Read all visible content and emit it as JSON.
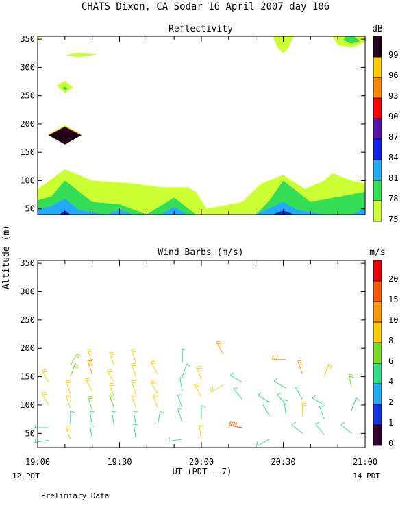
{
  "title": "CHATS Dixon, CA  Sodar  16 April 2007  day 106",
  "shared": {
    "ylabel": "Altitude (m)",
    "xlabel": "UT  (PDT - 7)",
    "x_ticks": [
      "19:00",
      "19:30",
      "20:00",
      "20:30",
      "21:00"
    ],
    "left_note": "12 PDT",
    "right_note": "14 PDT",
    "footer": "Prelimiary Data"
  },
  "chart_data": [
    {
      "type": "heatmap",
      "title": "Reflectivity",
      "ylim": [
        40,
        355
      ],
      "y_ticks": [
        50,
        100,
        150,
        200,
        250,
        300,
        350
      ],
      "xlim": [
        "19:00",
        "21:00"
      ],
      "colorbar": {
        "unit": "dB",
        "levels": [
          75,
          78,
          81,
          84,
          87,
          90,
          93,
          96,
          99
        ],
        "colors": [
          "#ccff33",
          "#33dd55",
          "#22aaff",
          "#1122ee",
          "#5511aa",
          "#ff0000",
          "#ff8800",
          "#ffcc00",
          "#22001a"
        ]
      },
      "layers": [
        {
          "level": 75,
          "points": [
            [
              "19:00",
              40
            ],
            [
              "19:00",
              85
            ],
            [
              "19:10",
              120
            ],
            [
              "19:20",
              100
            ],
            [
              "19:35",
              95
            ],
            [
              "19:45",
              88
            ],
            [
              "19:55",
              88
            ],
            [
              "19:58",
              80
            ],
            [
              "20:02",
              50
            ],
            [
              "20:15",
              62
            ],
            [
              "20:22",
              95
            ],
            [
              "20:30",
              110
            ],
            [
              "20:38",
              85
            ],
            [
              "20:45",
              100
            ],
            [
              "20:48",
              113
            ],
            [
              "20:55",
              100
            ],
            [
              "21:00",
              95
            ],
            [
              "21:00",
              40
            ]
          ]
        },
        {
          "level": 78,
          "points": [
            [
              "19:00",
              40
            ],
            [
              "19:00",
              65
            ],
            [
              "19:05",
              72
            ],
            [
              "19:10",
              100
            ],
            [
              "19:20",
              62
            ],
            [
              "19:30",
              58
            ],
            [
              "19:40",
              40
            ],
            [
              "19:50",
              70
            ],
            [
              "19:58",
              40
            ],
            [
              "20:20",
              40
            ],
            [
              "20:25",
              65
            ],
            [
              "20:30",
              100
            ],
            [
              "20:40",
              62
            ],
            [
              "21:00",
              80
            ],
            [
              "21:00",
              40
            ]
          ]
        },
        {
          "level": 81,
          "points": [
            [
              "19:00",
              40
            ],
            [
              "19:00",
              48
            ],
            [
              "19:05",
              55
            ],
            [
              "19:10",
              68
            ],
            [
              "19:15",
              48
            ],
            [
              "19:25",
              40
            ],
            [
              "19:30",
              48
            ],
            [
              "19:35",
              40
            ],
            [
              "19:45",
              40
            ],
            [
              "19:50",
              53
            ],
            [
              "19:55",
              40
            ],
            [
              "20:20",
              40
            ],
            [
              "20:30",
              62
            ],
            [
              "20:35",
              48
            ],
            [
              "20:45",
              40
            ],
            [
              "20:55",
              40
            ],
            [
              "21:00",
              50
            ],
            [
              "21:00",
              40
            ]
          ]
        },
        {
          "level": 84,
          "points": [
            [
              "19:08",
              40
            ],
            [
              "19:10",
              47
            ],
            [
              "19:12",
              40
            ]
          ]
        },
        {
          "level": 84,
          "points": [
            [
              "20:26",
              40
            ],
            [
              "20:30",
              47
            ],
            [
              "20:34",
              40
            ]
          ]
        },
        {
          "level": 75,
          "points": [
            [
              "19:04",
              182
            ],
            [
              "19:10",
              198
            ],
            [
              "19:16",
              182
            ],
            [
              "19:10",
              165
            ]
          ]
        },
        {
          "level": 93,
          "points": [
            [
              "19:04",
              181
            ],
            [
              "19:10",
              196
            ],
            [
              "19:16",
              181
            ],
            [
              "19:10",
              164
            ]
          ]
        },
        {
          "level": 99,
          "points": [
            [
              "19:04",
              180
            ],
            [
              "19:10",
              195
            ],
            [
              "19:16",
              180
            ],
            [
              "19:10",
              164
            ]
          ]
        },
        {
          "level": 75,
          "points": [
            [
              "19:07",
              268
            ],
            [
              "19:10",
              276
            ],
            [
              "19:13",
              264
            ],
            [
              "19:10",
              255
            ]
          ]
        },
        {
          "level": 78,
          "points": [
            [
              "19:09",
              264
            ],
            [
              "19:10",
              266
            ],
            [
              "19:11",
              262
            ],
            [
              "19:10",
              260
            ]
          ]
        },
        {
          "level": 75,
          "points": [
            [
              "19:10",
              322
            ],
            [
              "19:15",
              326
            ],
            [
              "19:22",
              323
            ],
            [
              "19:15",
              318
            ]
          ]
        },
        {
          "level": 75,
          "points": [
            [
              "19:00",
              342
            ],
            [
              "19:01",
              355
            ],
            [
              "19:00",
              355
            ]
          ]
        },
        {
          "level": 75,
          "points": [
            [
              "20:26",
              355
            ],
            [
              "20:28",
              335
            ],
            [
              "20:30",
              325
            ],
            [
              "20:32",
              335
            ],
            [
              "20:34",
              355
            ]
          ]
        },
        {
          "level": 75,
          "points": [
            [
              "20:48",
              355
            ],
            [
              "20:50",
              340
            ],
            [
              "20:55",
              335
            ],
            [
              "21:00",
              345
            ],
            [
              "21:00",
              355
            ]
          ]
        },
        {
          "level": 78,
          "points": [
            [
              "20:52",
              348
            ],
            [
              "20:55",
              342
            ],
            [
              "20:58",
              346
            ],
            [
              "20:56",
              355
            ],
            [
              "20:53",
              355
            ]
          ]
        }
      ]
    },
    {
      "type": "scatter",
      "title": "Wind Barbs (m/s)",
      "ylim": [
        25,
        355
      ],
      "y_ticks": [
        50,
        100,
        150,
        200,
        250,
        300,
        350
      ],
      "xlim": [
        "19:00",
        "21:00"
      ],
      "colorbar": {
        "unit": "m/s",
        "levels": [
          0,
          1,
          2,
          4,
          6,
          8,
          10,
          15,
          20
        ],
        "colors": [
          "#330033",
          "#1133dd",
          "#22aaff",
          "#33dd88",
          "#77dd22",
          "#ffcc00",
          "#ff9900",
          "#ff5500",
          "#ee0000"
        ]
      },
      "barbs": [
        {
          "t": "19:04",
          "alt": 140,
          "spd": 8,
          "dir": 330
        },
        {
          "t": "19:04",
          "alt": 100,
          "spd": 8,
          "dir": 330
        },
        {
          "t": "19:04",
          "alt": 60,
          "spd": 5,
          "dir": 270
        },
        {
          "t": "19:04",
          "alt": 38,
          "spd": 5,
          "dir": 260
        },
        {
          "t": "19:12",
          "alt": 170,
          "spd": 7,
          "dir": 30
        },
        {
          "t": "19:12",
          "alt": 150,
          "spd": 7,
          "dir": 20
        },
        {
          "t": "19:12",
          "alt": 120,
          "spd": 8,
          "dir": 340
        },
        {
          "t": "19:12",
          "alt": 95,
          "spd": 8,
          "dir": 340
        },
        {
          "t": "19:12",
          "alt": 65,
          "spd": 4,
          "dir": 0
        },
        {
          "t": "19:12",
          "alt": 40,
          "spd": 8,
          "dir": 340
        },
        {
          "t": "19:20",
          "alt": 175,
          "spd": 8,
          "dir": 340
        },
        {
          "t": "19:20",
          "alt": 155,
          "spd": 12,
          "dir": 340
        },
        {
          "t": "19:20",
          "alt": 125,
          "spd": 8,
          "dir": 330
        },
        {
          "t": "19:20",
          "alt": 92,
          "spd": 6,
          "dir": 340
        },
        {
          "t": "19:20",
          "alt": 65,
          "spd": 5,
          "dir": 350
        },
        {
          "t": "19:20",
          "alt": 40,
          "spd": 5,
          "dir": 350
        },
        {
          "t": "19:28",
          "alt": 170,
          "spd": 8,
          "dir": 340
        },
        {
          "t": "19:28",
          "alt": 140,
          "spd": 8,
          "dir": 330
        },
        {
          "t": "19:28",
          "alt": 115,
          "spd": 8,
          "dir": 340
        },
        {
          "t": "19:28",
          "alt": 95,
          "spd": 7,
          "dir": 340
        },
        {
          "t": "19:28",
          "alt": 65,
          "spd": 5,
          "dir": 350
        },
        {
          "t": "19:36",
          "alt": 175,
          "spd": 8,
          "dir": 340
        },
        {
          "t": "19:36",
          "alt": 150,
          "spd": 8,
          "dir": 340
        },
        {
          "t": "19:36",
          "alt": 120,
          "spd": 8,
          "dir": 340
        },
        {
          "t": "19:36",
          "alt": 95,
          "spd": 8,
          "dir": 340
        },
        {
          "t": "19:36",
          "alt": 65,
          "spd": 5,
          "dir": 350
        },
        {
          "t": "19:36",
          "alt": 42,
          "spd": 5,
          "dir": 350
        },
        {
          "t": "19:44",
          "alt": 155,
          "spd": 8,
          "dir": 330
        },
        {
          "t": "19:44",
          "alt": 120,
          "spd": 8,
          "dir": 330
        },
        {
          "t": "19:44",
          "alt": 95,
          "spd": 8,
          "dir": 340
        },
        {
          "t": "19:44",
          "alt": 65,
          "spd": 4,
          "dir": 10
        },
        {
          "t": "19:53",
          "alt": 175,
          "spd": 5,
          "dir": 0
        },
        {
          "t": "19:53",
          "alt": 150,
          "spd": 5,
          "dir": 20
        },
        {
          "t": "19:53",
          "alt": 125,
          "spd": 5,
          "dir": 350
        },
        {
          "t": "19:53",
          "alt": 95,
          "spd": 5,
          "dir": 340
        },
        {
          "t": "19:53",
          "alt": 70,
          "spd": 4,
          "dir": 340
        },
        {
          "t": "19:53",
          "alt": 40,
          "spd": 4,
          "dir": 260
        },
        {
          "t": "20:00",
          "alt": 145,
          "spd": 8,
          "dir": 340
        },
        {
          "t": "20:00",
          "alt": 115,
          "spd": 8,
          "dir": 330
        },
        {
          "t": "20:00",
          "alt": 75,
          "spd": 4,
          "dir": 0
        },
        {
          "t": "20:00",
          "alt": 40,
          "spd": 8,
          "dir": 350
        },
        {
          "t": "20:08",
          "alt": 190,
          "spd": 10,
          "dir": 330
        },
        {
          "t": "20:08",
          "alt": 135,
          "spd": 8,
          "dir": 240
        },
        {
          "t": "20:15",
          "alt": 140,
          "spd": 5,
          "dir": 300
        },
        {
          "t": "20:15",
          "alt": 110,
          "spd": 5,
          "dir": 320
        },
        {
          "t": "20:15",
          "alt": 60,
          "spd": 17,
          "dir": 280
        },
        {
          "t": "20:25",
          "alt": 105,
          "spd": 5,
          "dir": 300
        },
        {
          "t": "20:25",
          "alt": 80,
          "spd": 5,
          "dir": 330
        },
        {
          "t": "20:25",
          "alt": 40,
          "spd": 5,
          "dir": 240
        },
        {
          "t": "20:31",
          "alt": 180,
          "spd": 12,
          "dir": 270
        },
        {
          "t": "20:31",
          "alt": 130,
          "spd": 4,
          "dir": 300
        },
        {
          "t": "20:31",
          "alt": 100,
          "spd": 4,
          "dir": 320
        },
        {
          "t": "20:31",
          "alt": 85,
          "spd": 4,
          "dir": 350
        },
        {
          "t": "20:37",
          "alt": 155,
          "spd": 12,
          "dir": 340
        },
        {
          "t": "20:37",
          "alt": 110,
          "spd": 5,
          "dir": 330
        },
        {
          "t": "20:37",
          "alt": 80,
          "spd": 8,
          "dir": 0
        },
        {
          "t": "20:37",
          "alt": 50,
          "spd": 5,
          "dir": 310
        },
        {
          "t": "20:45",
          "alt": 150,
          "spd": 8,
          "dir": 20
        },
        {
          "t": "20:45",
          "alt": 100,
          "spd": 5,
          "dir": 300
        },
        {
          "t": "20:45",
          "alt": 75,
          "spd": 5,
          "dir": 340
        },
        {
          "t": "20:45",
          "alt": 48,
          "spd": 5,
          "dir": 320
        },
        {
          "t": "20:55",
          "alt": 130,
          "spd": 6,
          "dir": 350
        },
        {
          "t": "20:55",
          "alt": 90,
          "spd": 4,
          "dir": 20
        },
        {
          "t": "20:55",
          "alt": 50,
          "spd": 4,
          "dir": 310
        }
      ]
    }
  ]
}
